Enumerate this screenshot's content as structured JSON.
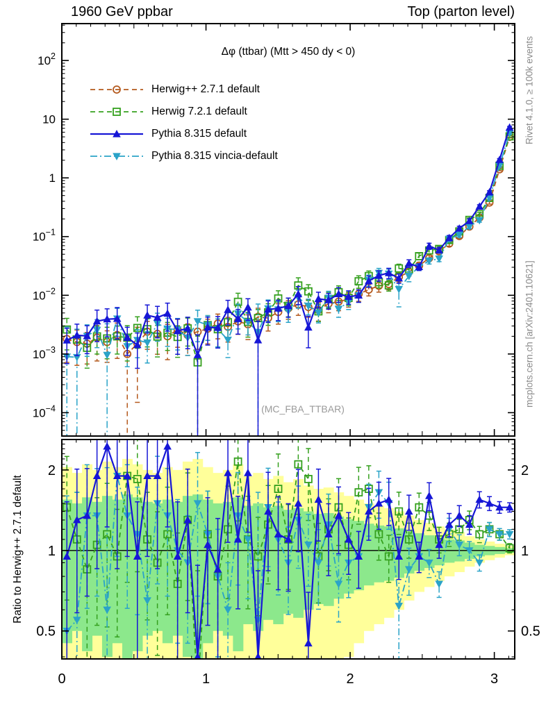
{
  "header": {
    "left": "1960 GeV ppbar",
    "right": "Top (parton level)"
  },
  "plot": {
    "title": "Δφ (ttbar) (Mtt > 450 dy < 0)",
    "watermark": "(MC_FBA_TTBAR)",
    "side_top": "Rivet 4.1.0, ≥ 100k events",
    "side_bottom": "mcplots.cern.ch [arXiv:2401.10621]",
    "ratio_ylabel": "Ratio to Herwig++ 2.7.1 default"
  },
  "legend": {
    "items": [
      {
        "label": "Herwig++ 2.7.1 default",
        "series": "herwigpp"
      },
      {
        "label": "Herwig 7.2.1 default",
        "series": "herwig7"
      },
      {
        "label": "Pythia 8.315 default",
        "series": "pythia"
      },
      {
        "label": "Pythia 8.315 vincia-default",
        "series": "vincia"
      }
    ]
  },
  "colors": {
    "herwigpp": "#b4591d",
    "herwig7": "#35a01e",
    "pythia": "#1616d6",
    "vincia": "#2aa3c8",
    "band_outer": "#ffff9a",
    "band_inner": "#8ce88c",
    "frame": "#000000",
    "gray_text": "#8c8c8c"
  },
  "chart_data": {
    "type": "line",
    "title": "Δφ (ttbar) (Mtt > 450 dy < 0)",
    "yscale": "log",
    "grid": false,
    "legend_position": "top-left",
    "xlim": [
      0,
      3.1416
    ],
    "main_ylim": [
      4e-05,
      425
    ],
    "ratio_ylim": [
      0.393,
      2.6
    ],
    "ratio_yscale": "log",
    "bin_width": 0.0698,
    "x_minor_step": 0.1,
    "x_ticks": [
      {
        "v": 0,
        "label": "0"
      },
      {
        "v": 1,
        "label": "1"
      },
      {
        "v": 2,
        "label": "2"
      },
      {
        "v": 3,
        "label": "3"
      }
    ],
    "main_yticks": [
      {
        "v": 100,
        "base": "10",
        "exp": "2"
      },
      {
        "v": 10,
        "base": "10",
        "exp": ""
      },
      {
        "v": 1,
        "base": "1",
        "exp": ""
      },
      {
        "v": 0.1,
        "base": "10",
        "exp": "−1"
      },
      {
        "v": 0.01,
        "base": "10",
        "exp": "−2"
      },
      {
        "v": 0.001,
        "base": "10",
        "exp": "−3"
      },
      {
        "v": 0.0001,
        "base": "10",
        "exp": "−4"
      }
    ],
    "ratio_yticks": [
      {
        "v": 2,
        "label": "2"
      },
      {
        "v": 1,
        "label": "1"
      },
      {
        "v": 0.5,
        "label": "0.5"
      }
    ],
    "x": [
      0.035,
      0.105,
      0.175,
      0.244,
      0.314,
      0.384,
      0.454,
      0.524,
      0.593,
      0.663,
      0.733,
      0.803,
      0.873,
      0.942,
      1.012,
      1.082,
      1.152,
      1.222,
      1.291,
      1.361,
      1.431,
      1.501,
      1.571,
      1.64,
      1.71,
      1.78,
      1.85,
      1.92,
      1.989,
      2.059,
      2.129,
      2.199,
      2.268,
      2.338,
      2.408,
      2.478,
      2.548,
      2.617,
      2.687,
      2.757,
      2.827,
      2.897,
      2.966,
      3.036,
      3.106
    ],
    "series": [
      {
        "id": "herwigpp",
        "name": "Herwig++ 2.7.1 default",
        "is_reference": true,
        "marker": "circle-open",
        "line": "dashed",
        "values": [
          0.0018,
          0.0016,
          0.0015,
          0.0019,
          0.0016,
          0.0021,
          0.001,
          0.0015,
          0.0024,
          0.0022,
          0.002,
          0.0026,
          0.0021,
          0.0024,
          0.0027,
          0.0033,
          0.0029,
          0.0036,
          0.0032,
          0.0043,
          0.0041,
          0.0052,
          0.006,
          0.007,
          0.0063,
          0.0056,
          0.0072,
          0.0078,
          0.0086,
          0.0105,
          0.0125,
          0.0145,
          0.0155,
          0.0205,
          0.025,
          0.032,
          0.043,
          0.056,
          0.076,
          0.102,
          0.148,
          0.21,
          0.38,
          1.4,
          5.0
        ],
        "err_rel": [
          0.6,
          0.6,
          0.55,
          0.6,
          0.55,
          0.6,
          1.0,
          0.9,
          0.5,
          0.55,
          0.6,
          0.5,
          0.55,
          0.5,
          0.45,
          0.45,
          0.45,
          0.4,
          0.45,
          0.4,
          0.4,
          0.38,
          0.35,
          0.35,
          0.33,
          0.35,
          0.3,
          0.3,
          0.27,
          0.25,
          0.22,
          0.22,
          0.2,
          0.18,
          0.15,
          0.14,
          0.12,
          0.11,
          0.1,
          0.09,
          0.08,
          0.07,
          0.06,
          0.05,
          0.04
        ]
      },
      {
        "id": "herwig7",
        "name": "Herwig 7.2.1 default",
        "is_reference": false,
        "marker": "square-open",
        "line": "dashed",
        "ratio_to_ref": [
          1.45,
          1.1,
          0.85,
          1.05,
          1.15,
          0.95,
          1.9,
          1.85,
          1.1,
          0.9,
          1.15,
          0.75,
          1.3,
          0.3,
          1.15,
          0.8,
          1.2,
          2.15,
          1.1,
          0.95,
          1.25,
          1.7,
          1.1,
          2.1,
          1.85,
          0.95,
          1.2,
          1.45,
          1.05,
          1.65,
          1.7,
          1.15,
          0.95,
          1.4,
          1.1,
          1.45,
          1.35,
          1.1,
          1.15,
          1.2,
          1.3,
          1.15,
          1.2,
          1.15,
          1.02
        ],
        "err_rel": [
          0.55,
          0.5,
          0.55,
          0.5,
          0.55,
          0.5,
          0.6,
          0.55,
          0.5,
          0.55,
          0.5,
          0.55,
          0.5,
          1.8,
          0.45,
          0.5,
          0.45,
          0.4,
          0.45,
          0.4,
          0.4,
          0.35,
          0.35,
          0.35,
          0.3,
          0.33,
          0.3,
          0.28,
          0.26,
          0.24,
          0.22,
          0.2,
          0.2,
          0.18,
          0.15,
          0.13,
          0.12,
          0.11,
          0.1,
          0.09,
          0.08,
          0.07,
          0.06,
          0.05,
          0.04
        ]
      },
      {
        "id": "vincia",
        "name": "Pythia 8.315 vincia-default",
        "is_reference": false,
        "marker": "triangle-down",
        "line": "dashdot",
        "ratio_to_ref": [
          0.5,
          0.55,
          1.35,
          1.35,
          0.6,
          1.9,
          1.35,
          1.15,
          0.65,
          1.5,
          1.35,
          1.0,
          0.9,
          1.5,
          1.15,
          0.8,
          0.6,
          1.35,
          1.1,
          0.55,
          1.45,
          1.1,
          0.9,
          1.3,
          1.05,
          0.9,
          1.25,
          0.75,
          0.9,
          0.95,
          1.45,
          1.65,
          1.5,
          0.62,
          0.85,
          0.95,
          0.9,
          0.75,
          1.2,
          1.05,
          1.0,
          0.9,
          1.2,
          1.15,
          1.15
        ],
        "err_rel": [
          2.2,
          2.0,
          0.55,
          0.5,
          2.4,
          0.5,
          0.55,
          0.5,
          0.55,
          0.5,
          0.5,
          0.55,
          0.5,
          0.55,
          0.45,
          0.5,
          0.5,
          0.45,
          0.4,
          2.0,
          0.4,
          0.38,
          0.36,
          0.34,
          0.3,
          0.33,
          0.3,
          0.28,
          0.26,
          0.24,
          0.22,
          0.2,
          0.2,
          0.5,
          0.2,
          0.13,
          0.12,
          0.11,
          0.1,
          0.09,
          0.08,
          0.07,
          0.06,
          0.05,
          0.04
        ]
      },
      {
        "id": "pythia",
        "name": "Pythia 8.315 default",
        "is_reference": false,
        "marker": "triangle-up",
        "line": "solid",
        "ratio_to_ref": [
          0.95,
          1.3,
          1.35,
          1.9,
          2.45,
          1.9,
          1.9,
          0.95,
          1.9,
          1.9,
          2.45,
          0.95,
          1.3,
          0.4,
          1.05,
          0.85,
          1.95,
          1.1,
          1.95,
          0.4,
          1.4,
          1.15,
          1.1,
          1.5,
          0.45,
          1.55,
          1.15,
          1.35,
          1.1,
          0.95,
          1.4,
          1.5,
          1.55,
          0.95,
          1.4,
          0.95,
          1.6,
          1.05,
          1.25,
          1.35,
          1.25,
          1.55,
          1.5,
          1.45,
          1.45
        ],
        "err_rel": [
          0.6,
          0.55,
          0.5,
          0.55,
          0.5,
          0.55,
          0.5,
          0.6,
          0.5,
          0.55,
          0.5,
          0.6,
          0.55,
          1.2,
          0.5,
          0.55,
          0.45,
          0.45,
          0.4,
          1.1,
          0.4,
          0.38,
          0.36,
          0.34,
          0.55,
          0.3,
          0.3,
          0.28,
          0.26,
          0.24,
          0.22,
          0.2,
          0.2,
          0.18,
          0.15,
          0.13,
          0.12,
          0.11,
          0.1,
          0.09,
          0.08,
          0.07,
          0.06,
          0.05,
          0.04
        ]
      }
    ],
    "ratio_bands": {
      "outer_half_width": [
        1.05,
        0.95,
        1.1,
        1.0,
        1.15,
        1.05,
        1.2,
        1.1,
        1.0,
        0.95,
        1.05,
        1.0,
        1.15,
        1.2,
        1.05,
        0.95,
        1.0,
        1.1,
        0.9,
        0.95,
        0.85,
        0.9,
        0.8,
        0.85,
        0.75,
        0.7,
        0.72,
        0.65,
        0.6,
        0.55,
        0.5,
        0.47,
        0.44,
        0.4,
        0.35,
        0.3,
        0.27,
        0.23,
        0.2,
        0.17,
        0.13,
        0.1,
        0.08,
        0.06,
        0.04
      ],
      "inner_half_width": [
        0.55,
        0.5,
        0.58,
        0.52,
        0.6,
        0.55,
        0.62,
        0.58,
        0.52,
        0.5,
        0.55,
        0.52,
        0.6,
        0.62,
        0.55,
        0.5,
        0.52,
        0.58,
        0.47,
        0.5,
        0.45,
        0.47,
        0.42,
        0.44,
        0.4,
        0.37,
        0.38,
        0.34,
        0.31,
        0.29,
        0.26,
        0.24,
        0.23,
        0.21,
        0.18,
        0.16,
        0.14,
        0.12,
        0.1,
        0.09,
        0.07,
        0.05,
        0.04,
        0.03,
        0.02
      ]
    }
  }
}
